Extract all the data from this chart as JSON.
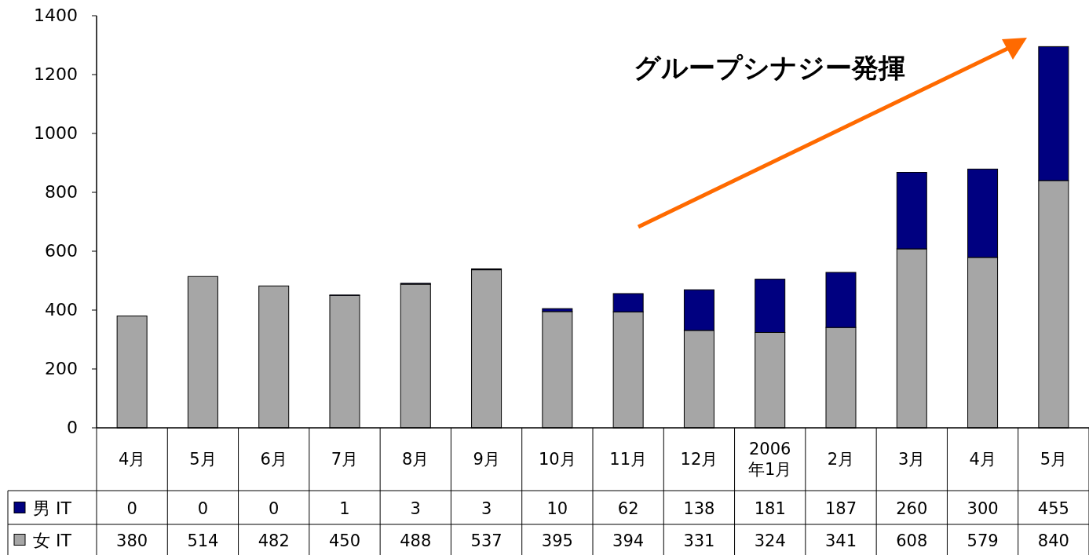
{
  "chart_data": {
    "type": "bar",
    "stacked": true,
    "data_labels": true,
    "legend": "bottom",
    "grid": false,
    "categories": [
      "4月",
      "5月",
      "6月",
      "7月",
      "8月",
      "9月",
      "10月",
      "11月",
      "12月",
      "2006年1月",
      "2月",
      "3月",
      "4月",
      "5月"
    ],
    "series": [
      {
        "name": "女 IT",
        "color": "#a6a6a6",
        "values": [
          380,
          514,
          482,
          450,
          488,
          537,
          395,
          394,
          331,
          324,
          341,
          608,
          579,
          840
        ]
      },
      {
        "name": "男 IT",
        "color": "#000080",
        "values": [
          0,
          0,
          0,
          1,
          3,
          3,
          10,
          62,
          138,
          181,
          187,
          260,
          300,
          455
        ]
      }
    ],
    "ylim": [
      0,
      1400
    ],
    "yticks": [
      0,
      200,
      400,
      600,
      800,
      1000,
      1200,
      1400
    ],
    "annotations": [
      "グループシナジー発揮"
    ]
  }
}
